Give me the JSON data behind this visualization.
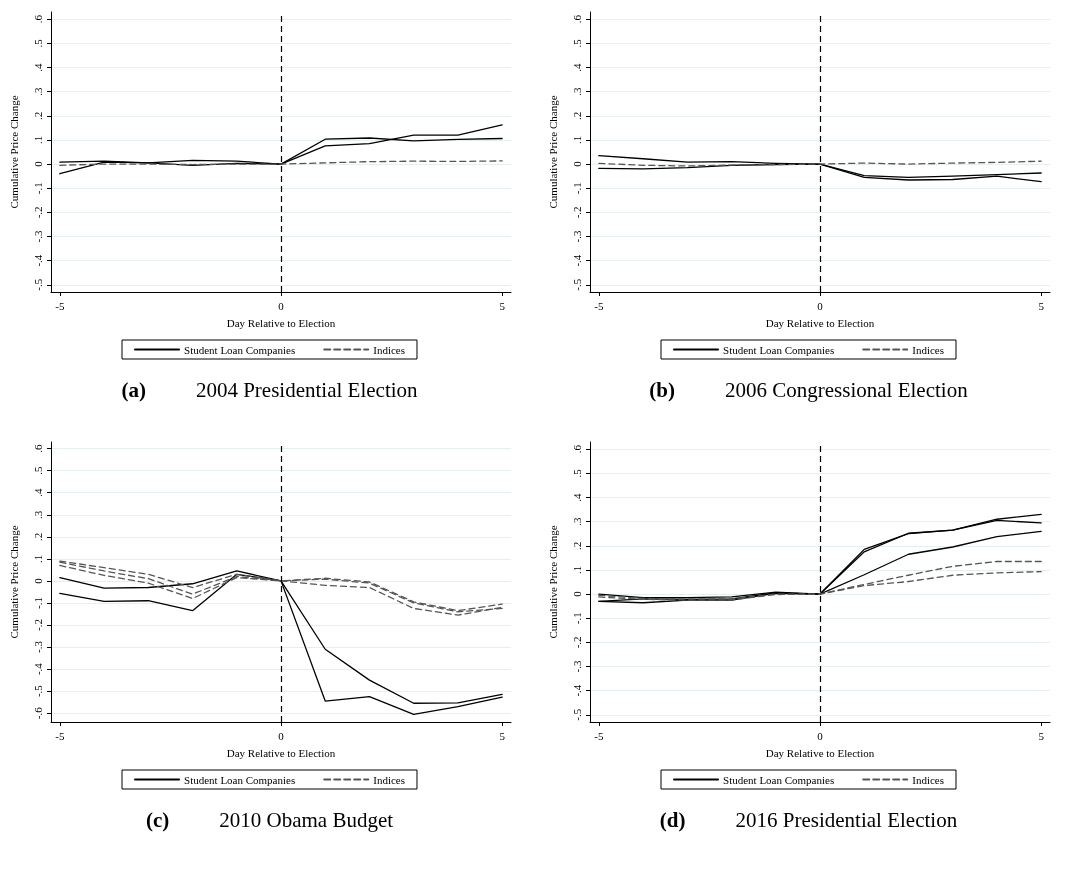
{
  "chart_data": [
    {
      "type": "line",
      "title": "(a) 2004 Presidential Election",
      "xlabel": "Day Relative to Election",
      "ylabel": "Cumulative Price Change",
      "x": [
        -5,
        -4,
        -3,
        -2,
        -1,
        0,
        1,
        2,
        3,
        4,
        5
      ],
      "xlim": [
        -5.2,
        5.2
      ],
      "xticks": [
        -5,
        0,
        5
      ],
      "ylim": [
        -0.53,
        0.63
      ],
      "yticks": [
        {
          "value": -0.5,
          "label": "-.5"
        },
        {
          "value": -0.4,
          "label": "-.4"
        },
        {
          "value": -0.3,
          "label": "-.3"
        },
        {
          "value": -0.2,
          "label": "-.2"
        },
        {
          "value": -0.1,
          "label": "-.1"
        },
        {
          "value": 0,
          "label": "0"
        },
        {
          "value": 0.1,
          "label": ".1"
        },
        {
          "value": 0.2,
          "label": ".2"
        },
        {
          "value": 0.3,
          "label": ".3"
        },
        {
          "value": 0.4,
          "label": ".4"
        },
        {
          "value": 0.5,
          "label": ".5"
        },
        {
          "value": 0.6,
          "label": ".6"
        }
      ],
      "grid": "y",
      "legend": "bottom",
      "marker": "none",
      "ref_lines": [
        {
          "axis": "x",
          "value": 0,
          "color": "#000000",
          "line_style": "dashed"
        }
      ],
      "series": [
        {
          "name": "Student Loan Companies",
          "color": "#000000",
          "line_style": "solid",
          "values": [
            0.008,
            0.012,
            0.005,
            0.015,
            0.012,
            0,
            0.103,
            0.108,
            0.096,
            0.102,
            0.106
          ]
        },
        {
          "color": "#000000",
          "line_style": "solid",
          "values": [
            -0.04,
            0.008,
            0.005,
            -0.005,
            0.003,
            0,
            0.075,
            0.085,
            0.12,
            0.12,
            0.162
          ]
        },
        {
          "name": "Indices",
          "color": "#555555",
          "line_style": "dashed",
          "values": [
            -0.005,
            0,
            0,
            -0.002,
            0,
            0,
            0.005,
            0.01,
            0.012,
            0.011,
            0.013
          ]
        }
      ]
    },
    {
      "type": "line",
      "title": "(b) 2006 Congressional Election",
      "xlabel": "Day Relative to Election",
      "ylabel": "Cumulative Price Change",
      "x": [
        -5,
        -4,
        -3,
        -2,
        -1,
        0,
        1,
        2,
        3,
        4,
        5
      ],
      "xlim": [
        -5.2,
        5.2
      ],
      "xticks": [
        -5,
        0,
        5
      ],
      "ylim": [
        -0.53,
        0.63
      ],
      "yticks": [
        {
          "value": -0.5,
          "label": "-.5"
        },
        {
          "value": -0.4,
          "label": "-.4"
        },
        {
          "value": -0.3,
          "label": "-.3"
        },
        {
          "value": -0.2,
          "label": "-.2"
        },
        {
          "value": -0.1,
          "label": "-.1"
        },
        {
          "value": 0,
          "label": "0"
        },
        {
          "value": 0.1,
          "label": ".1"
        },
        {
          "value": 0.2,
          "label": ".2"
        },
        {
          "value": 0.3,
          "label": ".3"
        },
        {
          "value": 0.4,
          "label": ".4"
        },
        {
          "value": 0.5,
          "label": ".5"
        },
        {
          "value": 0.6,
          "label": ".6"
        }
      ],
      "grid": "y",
      "legend": "bottom",
      "marker": "none",
      "ref_lines": [
        {
          "axis": "x",
          "value": 0,
          "color": "#000000",
          "line_style": "dashed"
        }
      ],
      "series": [
        {
          "name": "Student Loan Companies",
          "color": "#000000",
          "line_style": "solid",
          "values": [
            0.035,
            0.022,
            0.008,
            0.01,
            0.003,
            0,
            -0.048,
            -0.055,
            -0.05,
            -0.044,
            -0.037
          ]
        },
        {
          "color": "#000000",
          "line_style": "solid",
          "values": [
            -0.018,
            -0.02,
            -0.015,
            -0.005,
            -0.002,
            0,
            -0.055,
            -0.066,
            -0.064,
            -0.05,
            -0.073
          ]
        },
        {
          "name": "Indices",
          "color": "#555555",
          "line_style": "dashed",
          "values": [
            0.003,
            -0.005,
            -0.008,
            -0.004,
            -0.002,
            0,
            0.004,
            0,
            0.004,
            0.007,
            0.012
          ]
        }
      ]
    },
    {
      "type": "line",
      "title": "(c) 2010 Obama Budget",
      "xlabel": "Day Relative to Election",
      "ylabel": "Cumulative Price Change",
      "x": [
        -5,
        -4,
        -3,
        -2,
        -1,
        0,
        1,
        2,
        3,
        4,
        5
      ],
      "xlim": [
        -5.2,
        5.2
      ],
      "xticks": [
        -5,
        0,
        5
      ],
      "ylim": [
        -0.64,
        0.63
      ],
      "yticks": [
        {
          "value": -0.6,
          "label": "-.6"
        },
        {
          "value": -0.5,
          "label": "-.5"
        },
        {
          "value": -0.4,
          "label": "-.4"
        },
        {
          "value": -0.3,
          "label": "-.3"
        },
        {
          "value": -0.2,
          "label": "-.2"
        },
        {
          "value": -0.1,
          "label": "-.1"
        },
        {
          "value": 0,
          "label": "0"
        },
        {
          "value": 0.1,
          "label": ".1"
        },
        {
          "value": 0.2,
          "label": ".2"
        },
        {
          "value": 0.3,
          "label": ".3"
        },
        {
          "value": 0.4,
          "label": ".4"
        },
        {
          "value": 0.5,
          "label": ".5"
        },
        {
          "value": 0.6,
          "label": ".6"
        }
      ],
      "grid": "y",
      "legend": "bottom",
      "marker": "none",
      "ref_lines": [
        {
          "axis": "x",
          "value": 0,
          "color": "#000000",
          "line_style": "dashed"
        }
      ],
      "series": [
        {
          "name": "Student Loan Companies",
          "color": "#000000",
          "line_style": "solid",
          "values": [
            0.015,
            -0.033,
            -0.03,
            -0.013,
            0.045,
            0,
            -0.31,
            -0.45,
            -0.555,
            -0.553,
            -0.515
          ]
        },
        {
          "color": "#000000",
          "line_style": "solid",
          "values": [
            -0.057,
            -0.093,
            -0.09,
            -0.135,
            0.03,
            0,
            -0.545,
            -0.525,
            -0.605,
            -0.57,
            -0.527
          ]
        },
        {
          "name": "Indices",
          "color": "#555555",
          "line_style": "dashed",
          "values": [
            0.09,
            0.06,
            0.03,
            -0.03,
            0.03,
            0,
            0.012,
            -0.005,
            -0.095,
            -0.135,
            -0.105
          ]
        },
        {
          "color": "#555555",
          "line_style": "dashed",
          "values": [
            0.085,
            0.045,
            0.01,
            -0.06,
            0.02,
            0,
            0.008,
            -0.01,
            -0.1,
            -0.14,
            -0.125
          ]
        },
        {
          "color": "#555555",
          "line_style": "dashed",
          "values": [
            0.07,
            0.025,
            -0.01,
            -0.08,
            0.015,
            0,
            -0.02,
            -0.03,
            -0.125,
            -0.155,
            -0.12
          ]
        }
      ]
    },
    {
      "type": "line",
      "title": "(d) 2016 Presidential Election",
      "xlabel": "Day Relative to Election",
      "ylabel": "Cumulative Price Change",
      "x": [
        -5,
        -4,
        -3,
        -2,
        -1,
        0,
        1,
        2,
        3,
        4,
        5
      ],
      "xlim": [
        -5.2,
        5.2
      ],
      "xticks": [
        -5,
        0,
        5
      ],
      "ylim": [
        -0.53,
        0.63
      ],
      "yticks": [
        {
          "value": -0.5,
          "label": "-.5"
        },
        {
          "value": -0.4,
          "label": "-.4"
        },
        {
          "value": -0.3,
          "label": "-.3"
        },
        {
          "value": -0.2,
          "label": "-.2"
        },
        {
          "value": -0.1,
          "label": "-.1"
        },
        {
          "value": 0,
          "label": "0"
        },
        {
          "value": 0.1,
          "label": ".1"
        },
        {
          "value": 0.2,
          "label": ".2"
        },
        {
          "value": 0.3,
          "label": ".3"
        },
        {
          "value": 0.4,
          "label": ".4"
        },
        {
          "value": 0.5,
          "label": ".5"
        },
        {
          "value": 0.6,
          "label": ".6"
        }
      ],
      "grid": "y",
      "legend": "bottom",
      "marker": "none",
      "ref_lines": [
        {
          "axis": "x",
          "value": 0,
          "color": "#000000",
          "line_style": "dashed"
        }
      ],
      "series": [
        {
          "name": "Student Loan Companies",
          "color": "#000000",
          "line_style": "solid",
          "values": [
            0,
            -0.015,
            -0.015,
            -0.012,
            0.008,
            0,
            0.185,
            0.25,
            0.265,
            0.31,
            0.33
          ]
        },
        {
          "color": "#000000",
          "line_style": "solid",
          "values": [
            -0.03,
            -0.02,
            -0.022,
            -0.02,
            0.005,
            0,
            0.175,
            0.252,
            0.265,
            0.305,
            0.295
          ]
        },
        {
          "color": "#000000",
          "line_style": "solid",
          "values": [
            -0.03,
            -0.036,
            -0.025,
            -0.025,
            0.003,
            0,
            0.08,
            0.165,
            0.195,
            0.238,
            0.26
          ]
        },
        {
          "name": "Indices",
          "color": "#555555",
          "line_style": "dashed",
          "values": [
            -0.005,
            -0.018,
            -0.02,
            -0.02,
            0,
            0,
            0.04,
            0.078,
            0.115,
            0.135,
            0.135
          ]
        },
        {
          "color": "#555555",
          "line_style": "dashed",
          "values": [
            -0.012,
            -0.022,
            -0.025,
            -0.025,
            -0.002,
            0,
            0.035,
            0.052,
            0.078,
            0.088,
            0.093
          ]
        }
      ]
    }
  ]
}
